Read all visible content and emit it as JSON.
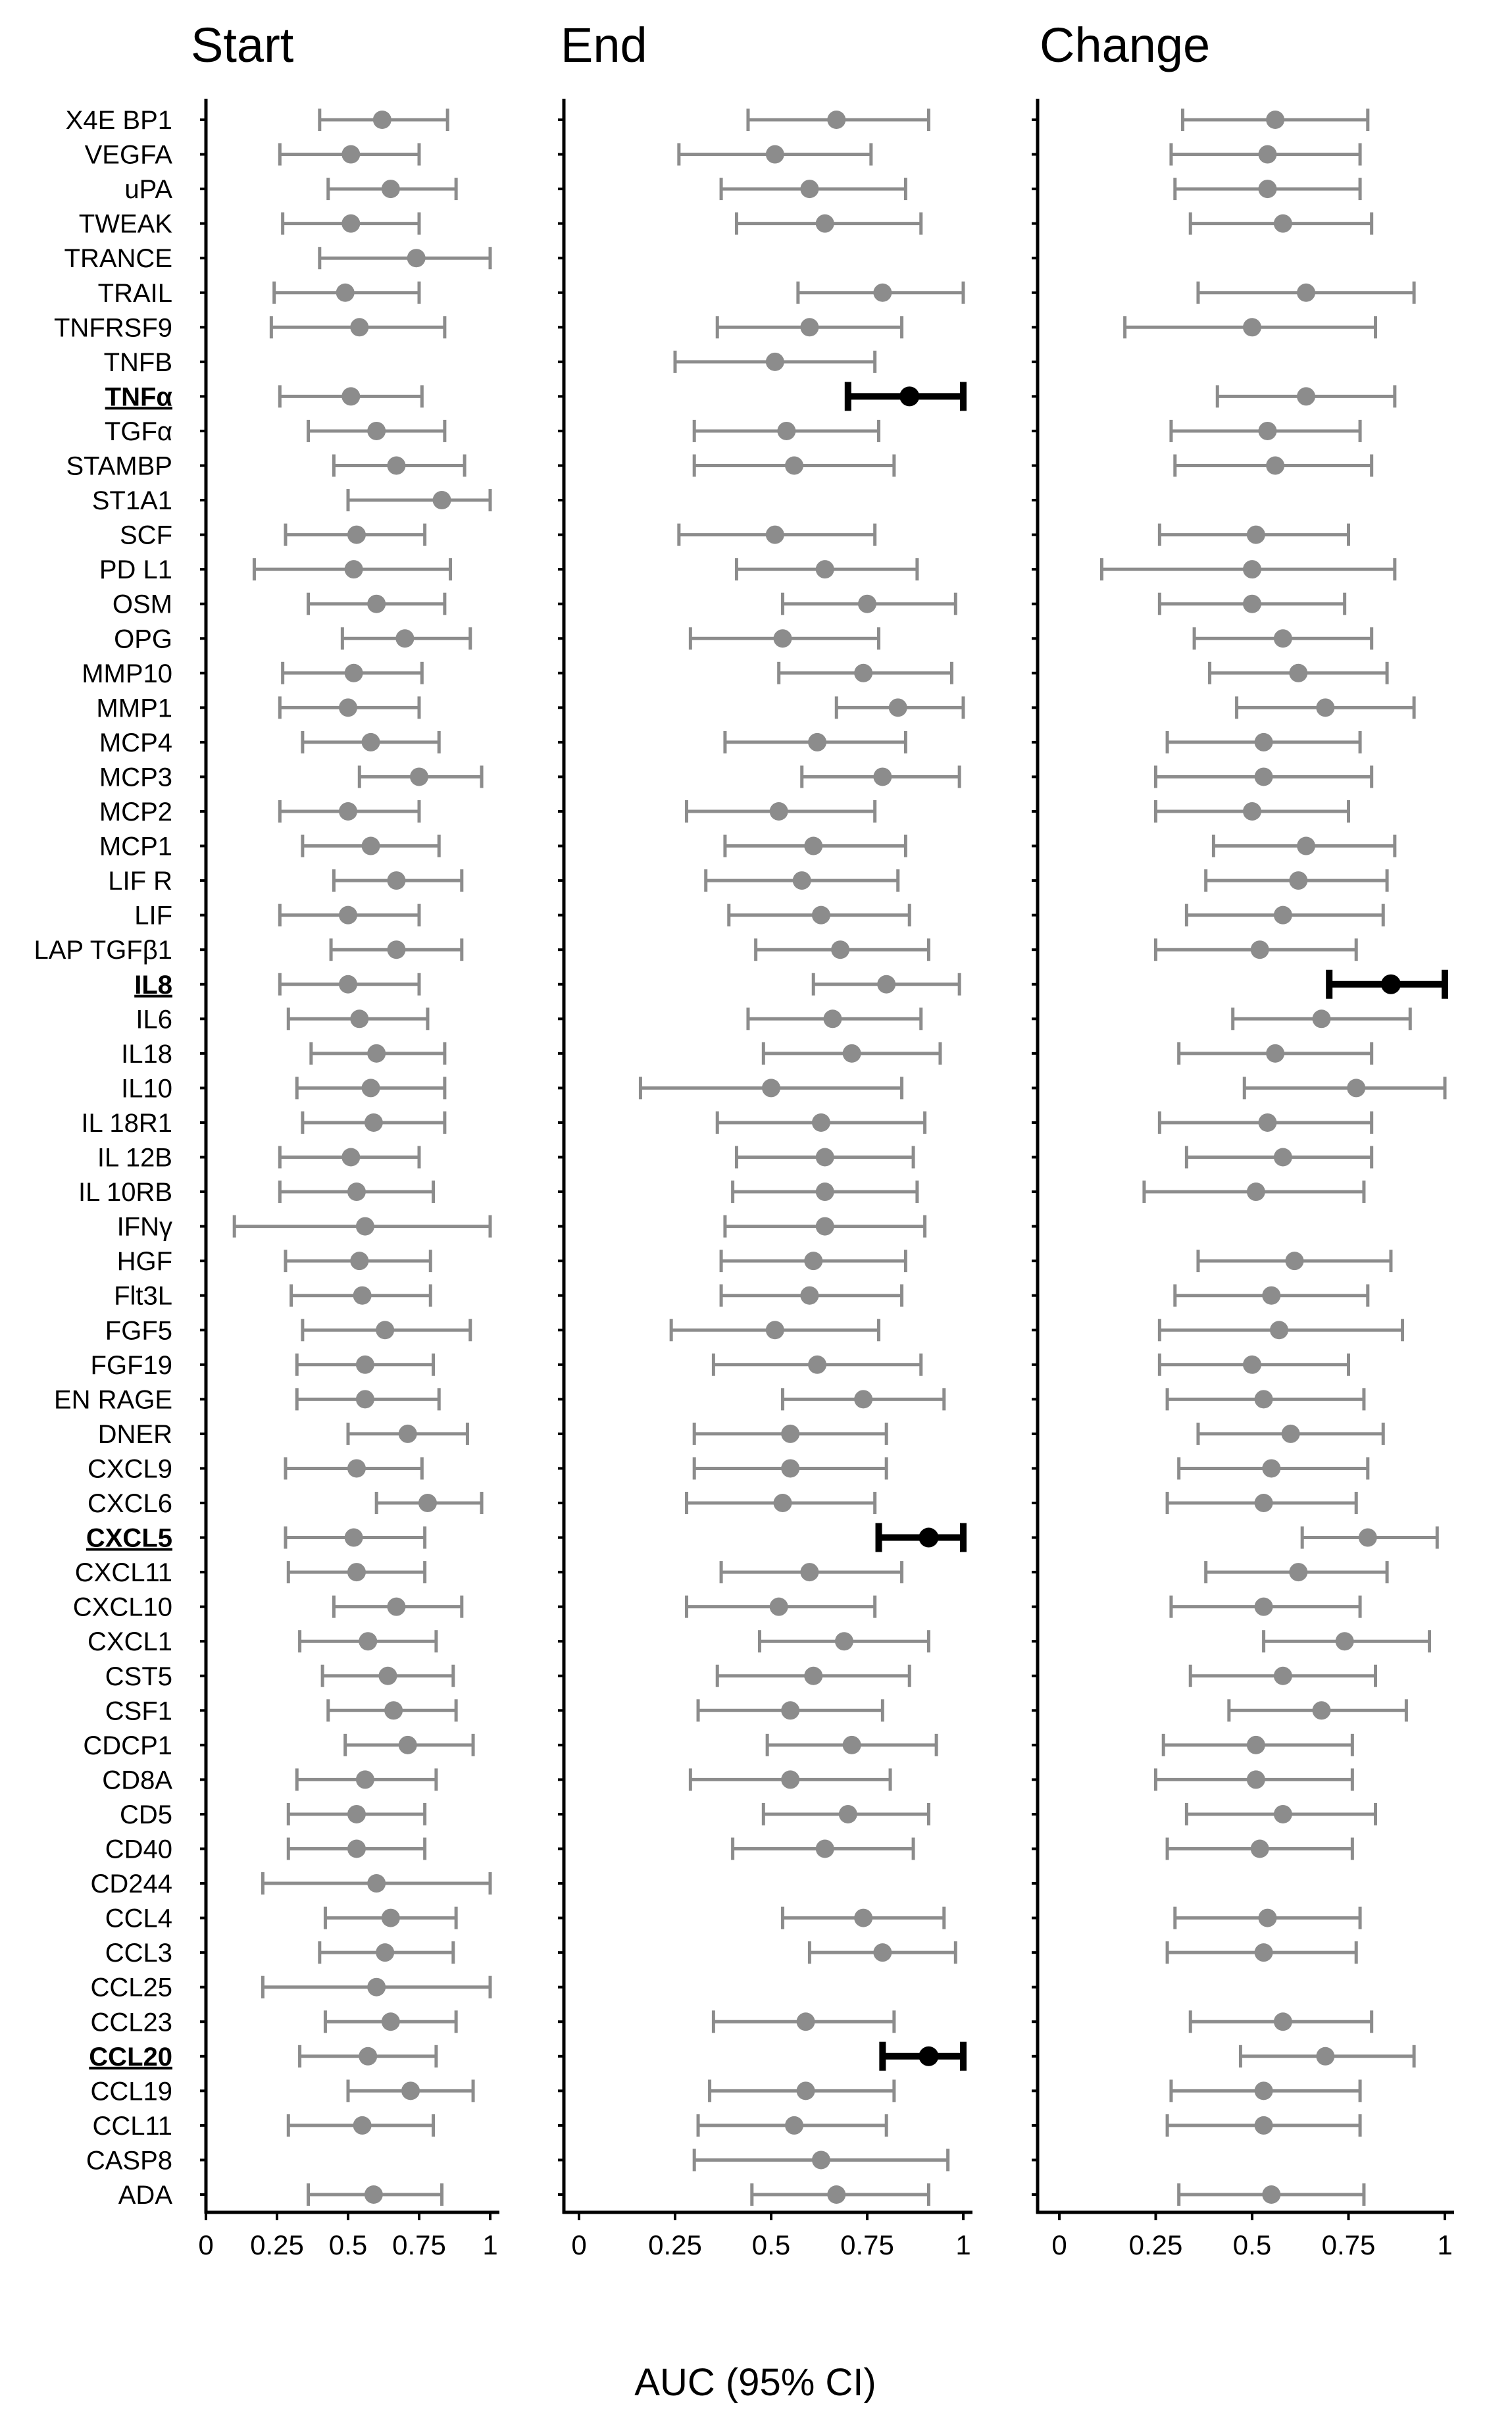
{
  "chart_data": {
    "type": "forest",
    "xlabel": "AUC (95% CI)",
    "xlim": [
      0,
      1
    ],
    "xticks": [
      0,
      0.25,
      0.5,
      0.75,
      1
    ],
    "xtick_labels": [
      "0",
      "0.25",
      "0.5",
      "0.75",
      "1"
    ],
    "colors": {
      "normal": "#8c8c8c",
      "highlight": "#000000",
      "axis": "#000000"
    },
    "highlight_labels": [
      "TNFα",
      "IL8",
      "CXCL5",
      "CCL20"
    ],
    "categories": [
      "X4E BP1",
      "VEGFA",
      "uPA",
      "TWEAK",
      "TRANCE",
      "TRAIL",
      "TNFRSF9",
      "TNFB",
      "TNFα",
      "TGFα",
      "STAMBP",
      "ST1A1",
      "SCF",
      "PD L1",
      "OSM",
      "OPG",
      "MMP10",
      "MMP1",
      "MCP4",
      "MCP3",
      "MCP2",
      "MCP1",
      "LIF R",
      "LIF",
      "LAP TGFβ1",
      "IL8",
      "IL6",
      "IL18",
      "IL10",
      "IL 18R1",
      "IL 12B",
      "IL 10RB",
      "IFNγ",
      "HGF",
      "Flt3L",
      "FGF5",
      "FGF19",
      "EN RAGE",
      "DNER",
      "CXCL9",
      "CXCL6",
      "CXCL5",
      "CXCL11",
      "CXCL10",
      "CXCL1",
      "CST5",
      "CSF1",
      "CDCP1",
      "CD8A",
      "CD5",
      "CD40",
      "CD244",
      "CCL4",
      "CCL3",
      "CCL25",
      "CCL23",
      "CCL20",
      "CCL19",
      "CCL11",
      "CASP8",
      "ADA"
    ],
    "panels": [
      {
        "title": "Start",
        "rows": [
          [
            0.62,
            0.4,
            0.85
          ],
          [
            0.51,
            0.26,
            0.75
          ],
          [
            0.65,
            0.43,
            0.88
          ],
          [
            0.51,
            0.27,
            0.75
          ],
          [
            0.74,
            0.4,
            1.0
          ],
          [
            0.49,
            0.24,
            0.75
          ],
          [
            0.54,
            0.23,
            0.84
          ],
          null,
          [
            0.51,
            0.26,
            0.76
          ],
          [
            0.6,
            0.36,
            0.84
          ],
          [
            0.67,
            0.45,
            0.91
          ],
          [
            0.83,
            0.5,
            1.0
          ],
          [
            0.53,
            0.28,
            0.77
          ],
          [
            0.52,
            0.17,
            0.86
          ],
          [
            0.6,
            0.36,
            0.84
          ],
          [
            0.7,
            0.48,
            0.93
          ],
          [
            0.52,
            0.27,
            0.76
          ],
          [
            0.5,
            0.26,
            0.75
          ],
          [
            0.58,
            0.34,
            0.82
          ],
          [
            0.75,
            0.54,
            0.97
          ],
          [
            0.5,
            0.26,
            0.75
          ],
          [
            0.58,
            0.34,
            0.82
          ],
          [
            0.67,
            0.45,
            0.9
          ],
          [
            0.5,
            0.26,
            0.75
          ],
          [
            0.67,
            0.44,
            0.9
          ],
          [
            0.5,
            0.26,
            0.75
          ],
          [
            0.54,
            0.29,
            0.78
          ],
          [
            0.6,
            0.37,
            0.84
          ],
          [
            0.58,
            0.32,
            0.84
          ],
          [
            0.59,
            0.34,
            0.84
          ],
          [
            0.51,
            0.26,
            0.75
          ],
          [
            0.53,
            0.26,
            0.8
          ],
          [
            0.56,
            0.1,
            1.0
          ],
          [
            0.54,
            0.28,
            0.79
          ],
          [
            0.55,
            0.3,
            0.79
          ],
          [
            0.63,
            0.34,
            0.93
          ],
          [
            0.56,
            0.32,
            0.8
          ],
          [
            0.56,
            0.32,
            0.82
          ],
          [
            0.71,
            0.5,
            0.92
          ],
          [
            0.53,
            0.28,
            0.76
          ],
          [
            0.78,
            0.6,
            0.97
          ],
          [
            0.52,
            0.28,
            0.77
          ],
          [
            0.53,
            0.29,
            0.77
          ],
          [
            0.67,
            0.45,
            0.9
          ],
          [
            0.57,
            0.33,
            0.81
          ],
          [
            0.64,
            0.41,
            0.87
          ],
          [
            0.66,
            0.43,
            0.88
          ],
          [
            0.71,
            0.49,
            0.94
          ],
          [
            0.56,
            0.32,
            0.81
          ],
          [
            0.53,
            0.29,
            0.77
          ],
          [
            0.53,
            0.29,
            0.77
          ],
          [
            0.6,
            0.2,
            1.0
          ],
          [
            0.65,
            0.42,
            0.88
          ],
          [
            0.63,
            0.4,
            0.87
          ],
          [
            0.6,
            0.2,
            1.0
          ],
          [
            0.65,
            0.42,
            0.88
          ],
          [
            0.57,
            0.33,
            0.81
          ],
          [
            0.72,
            0.5,
            0.94
          ],
          [
            0.55,
            0.29,
            0.8
          ],
          null,
          [
            0.59,
            0.36,
            0.83
          ]
        ],
        "highlight_rows": []
      },
      {
        "title": "End",
        "rows": [
          [
            0.67,
            0.44,
            0.91
          ],
          [
            0.51,
            0.26,
            0.76
          ],
          [
            0.6,
            0.37,
            0.85
          ],
          [
            0.64,
            0.41,
            0.89
          ],
          null,
          [
            0.79,
            0.57,
            1.0
          ],
          [
            0.6,
            0.36,
            0.84
          ],
          [
            0.51,
            0.25,
            0.77
          ],
          [
            0.86,
            0.7,
            1.0
          ],
          [
            0.54,
            0.3,
            0.78
          ],
          [
            0.56,
            0.3,
            0.82
          ],
          null,
          [
            0.51,
            0.26,
            0.77
          ],
          [
            0.64,
            0.41,
            0.88
          ],
          [
            0.75,
            0.53,
            0.98
          ],
          [
            0.53,
            0.29,
            0.78
          ],
          [
            0.74,
            0.52,
            0.97
          ],
          [
            0.83,
            0.67,
            1.0
          ],
          [
            0.62,
            0.38,
            0.85
          ],
          [
            0.79,
            0.58,
            0.99
          ],
          [
            0.52,
            0.28,
            0.77
          ],
          [
            0.61,
            0.38,
            0.85
          ],
          [
            0.58,
            0.33,
            0.83
          ],
          [
            0.63,
            0.39,
            0.86
          ],
          [
            0.68,
            0.46,
            0.91
          ],
          [
            0.8,
            0.61,
            0.99
          ],
          [
            0.66,
            0.44,
            0.89
          ],
          [
            0.71,
            0.48,
            0.94
          ],
          [
            0.5,
            0.16,
            0.84
          ],
          [
            0.63,
            0.36,
            0.9
          ],
          [
            0.64,
            0.41,
            0.87
          ],
          [
            0.64,
            0.4,
            0.88
          ],
          [
            0.64,
            0.38,
            0.9
          ],
          [
            0.61,
            0.37,
            0.85
          ],
          [
            0.6,
            0.37,
            0.84
          ],
          [
            0.51,
            0.24,
            0.78
          ],
          [
            0.62,
            0.35,
            0.89
          ],
          [
            0.74,
            0.53,
            0.95
          ],
          [
            0.55,
            0.3,
            0.8
          ],
          [
            0.55,
            0.3,
            0.8
          ],
          [
            0.53,
            0.28,
            0.77
          ],
          [
            0.91,
            0.78,
            1.0
          ],
          [
            0.6,
            0.37,
            0.84
          ],
          [
            0.52,
            0.28,
            0.77
          ],
          [
            0.69,
            0.47,
            0.91
          ],
          [
            0.61,
            0.36,
            0.86
          ],
          [
            0.55,
            0.31,
            0.79
          ],
          [
            0.71,
            0.49,
            0.93
          ],
          [
            0.55,
            0.29,
            0.81
          ],
          [
            0.7,
            0.48,
            0.91
          ],
          [
            0.64,
            0.4,
            0.87
          ],
          null,
          [
            0.74,
            0.53,
            0.95
          ],
          [
            0.79,
            0.6,
            0.98
          ],
          null,
          [
            0.59,
            0.35,
            0.82
          ],
          [
            0.91,
            0.79,
            1.0
          ],
          [
            0.59,
            0.34,
            0.82
          ],
          [
            0.56,
            0.31,
            0.8
          ],
          [
            0.63,
            0.3,
            0.96
          ],
          [
            0.67,
            0.45,
            0.91
          ]
        ],
        "highlight_rows": [
          8,
          41,
          56
        ]
      },
      {
        "title": "Change",
        "rows": [
          [
            0.56,
            0.32,
            0.8
          ],
          [
            0.54,
            0.29,
            0.78
          ],
          [
            0.54,
            0.3,
            0.78
          ],
          [
            0.58,
            0.34,
            0.81
          ],
          null,
          [
            0.64,
            0.36,
            0.92
          ],
          [
            0.5,
            0.17,
            0.82
          ],
          null,
          [
            0.64,
            0.41,
            0.87
          ],
          [
            0.54,
            0.29,
            0.78
          ],
          [
            0.56,
            0.3,
            0.81
          ],
          null,
          [
            0.51,
            0.26,
            0.75
          ],
          [
            0.5,
            0.11,
            0.87
          ],
          [
            0.5,
            0.26,
            0.74
          ],
          [
            0.58,
            0.35,
            0.81
          ],
          [
            0.62,
            0.39,
            0.85
          ],
          [
            0.69,
            0.46,
            0.92
          ],
          [
            0.53,
            0.28,
            0.78
          ],
          [
            0.53,
            0.25,
            0.81
          ],
          [
            0.5,
            0.25,
            0.75
          ],
          [
            0.64,
            0.4,
            0.87
          ],
          [
            0.62,
            0.38,
            0.85
          ],
          [
            0.58,
            0.33,
            0.84
          ],
          [
            0.52,
            0.25,
            0.77
          ],
          [
            0.86,
            0.7,
            1.0
          ],
          [
            0.68,
            0.45,
            0.91
          ],
          [
            0.56,
            0.31,
            0.81
          ],
          [
            0.77,
            0.48,
            1.0
          ],
          [
            0.54,
            0.26,
            0.81
          ],
          [
            0.58,
            0.33,
            0.81
          ],
          [
            0.51,
            0.22,
            0.79
          ],
          null,
          [
            0.61,
            0.36,
            0.86
          ],
          [
            0.55,
            0.3,
            0.8
          ],
          [
            0.57,
            0.26,
            0.89
          ],
          [
            0.5,
            0.26,
            0.75
          ],
          [
            0.53,
            0.28,
            0.79
          ],
          [
            0.6,
            0.36,
            0.84
          ],
          [
            0.55,
            0.31,
            0.8
          ],
          [
            0.53,
            0.28,
            0.77
          ],
          [
            0.8,
            0.63,
            0.98
          ],
          [
            0.62,
            0.38,
            0.85
          ],
          [
            0.53,
            0.29,
            0.78
          ],
          [
            0.74,
            0.53,
            0.96
          ],
          [
            0.58,
            0.34,
            0.82
          ],
          [
            0.68,
            0.44,
            0.9
          ],
          [
            0.51,
            0.27,
            0.76
          ],
          [
            0.51,
            0.25,
            0.76
          ],
          [
            0.58,
            0.33,
            0.82
          ],
          [
            0.52,
            0.28,
            0.76
          ],
          null,
          [
            0.54,
            0.3,
            0.78
          ],
          [
            0.53,
            0.28,
            0.77
          ],
          null,
          [
            0.58,
            0.34,
            0.81
          ],
          [
            0.69,
            0.47,
            0.92
          ],
          [
            0.53,
            0.29,
            0.78
          ],
          [
            0.53,
            0.28,
            0.78
          ],
          null,
          [
            0.55,
            0.31,
            0.79
          ]
        ],
        "highlight_rows": [
          25
        ]
      }
    ]
  }
}
